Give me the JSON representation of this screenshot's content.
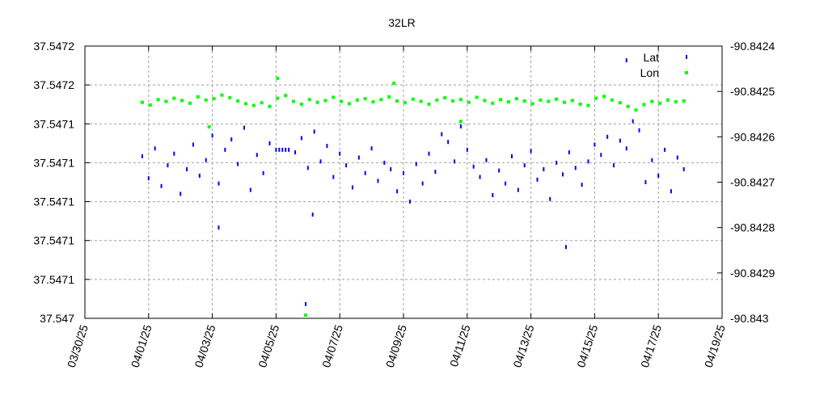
{
  "chart_data": {
    "type": "scatter",
    "title": "32LR",
    "xlabel": "",
    "ylabel": "",
    "x_units": "days since 03/30/25",
    "xlim": [
      0,
      20
    ],
    "x_tick_labels": [
      "03/30/25",
      "04/01/25",
      "04/03/25",
      "04/05/25",
      "04/07/25",
      "04/09/25",
      "04/11/25",
      "04/13/25",
      "04/15/25",
      "04/17/25",
      "04/19/25"
    ],
    "ylim_left": [
      37.547,
      37.54721
    ],
    "y_left_tick_labels": [
      "37.547",
      "37.5471",
      "37.5471",
      "37.5471",
      "37.5471",
      "37.5471",
      "37.5472",
      "37.5472"
    ],
    "ylim_right": [
      -90.843,
      -90.8424
    ],
    "y_right_tick_labels": [
      "-90.843",
      "-90.8429",
      "-90.8428",
      "-90.8427",
      "-90.8426",
      "-90.8425",
      "-90.8424"
    ],
    "grid": true,
    "legend_position": "top-right",
    "series": [
      {
        "name": "Lat",
        "axis": "left",
        "color": "#0000ff",
        "points": [
          [
            1.8,
            37.547125
          ],
          [
            2.0,
            37.547108
          ],
          [
            2.2,
            37.547131
          ],
          [
            2.4,
            37.547102
          ],
          [
            2.6,
            37.547118
          ],
          [
            2.8,
            37.547127
          ],
          [
            3.0,
            37.547096
          ],
          [
            3.2,
            37.547115
          ],
          [
            3.4,
            37.547134
          ],
          [
            3.6,
            37.54711
          ],
          [
            3.8,
            37.547122
          ],
          [
            4.0,
            37.547141
          ],
          [
            4.2,
            37.547104
          ],
          [
            4.4,
            37.54713
          ],
          [
            4.6,
            37.547138
          ],
          [
            4.8,
            37.547119
          ],
          [
            5.0,
            37.547147
          ],
          [
            5.2,
            37.547099
          ],
          [
            5.4,
            37.547126
          ],
          [
            5.6,
            37.547112
          ],
          [
            5.8,
            37.547135
          ],
          [
            6.0,
            37.54713
          ],
          [
            6.1,
            37.54713
          ],
          [
            6.2,
            37.54713
          ],
          [
            6.3,
            37.54713
          ],
          [
            6.4,
            37.54713
          ],
          [
            6.6,
            37.547128
          ],
          [
            6.8,
            37.547139
          ],
          [
            7.0,
            37.547116
          ],
          [
            7.2,
            37.547144
          ],
          [
            7.4,
            37.547121
          ],
          [
            7.6,
            37.547133
          ],
          [
            7.8,
            37.547109
          ],
          [
            8.0,
            37.547127
          ],
          [
            8.2,
            37.547118
          ],
          [
            8.4,
            37.547101
          ],
          [
            8.6,
            37.547124
          ],
          [
            8.8,
            37.547112
          ],
          [
            9.0,
            37.547131
          ],
          [
            9.2,
            37.547106
          ],
          [
            9.4,
            37.54712
          ],
          [
            9.6,
            37.547115
          ],
          [
            9.8,
            37.547098
          ],
          [
            10.0,
            37.547112
          ],
          [
            10.2,
            37.54709
          ],
          [
            10.4,
            37.547119
          ],
          [
            10.6,
            37.547104
          ],
          [
            10.8,
            37.547127
          ],
          [
            11.0,
            37.547113
          ],
          [
            11.2,
            37.547142
          ],
          [
            11.4,
            37.547136
          ],
          [
            11.6,
            37.547121
          ],
          [
            11.8,
            37.547148
          ],
          [
            12.0,
            37.54713
          ],
          [
            12.2,
            37.547117
          ],
          [
            12.4,
            37.547109
          ],
          [
            12.6,
            37.547122
          ],
          [
            12.8,
            37.547095
          ],
          [
            13.0,
            37.547114
          ],
          [
            13.2,
            37.547104
          ],
          [
            13.4,
            37.547125
          ],
          [
            13.6,
            37.547099
          ],
          [
            13.8,
            37.547118
          ],
          [
            14.0,
            37.547129
          ],
          [
            14.2,
            37.547107
          ],
          [
            14.4,
            37.547115
          ],
          [
            14.6,
            37.547092
          ],
          [
            14.8,
            37.54712
          ],
          [
            15.0,
            37.547111
          ],
          [
            15.2,
            37.547128
          ],
          [
            15.4,
            37.547116
          ],
          [
            15.6,
            37.547103
          ],
          [
            15.8,
            37.547121
          ],
          [
            16.0,
            37.547134
          ],
          [
            16.2,
            37.547126
          ],
          [
            16.4,
            37.54714
          ],
          [
            16.6,
            37.547118
          ],
          [
            16.8,
            37.547137
          ],
          [
            17.0,
            37.547131
          ],
          [
            17.2,
            37.547152
          ],
          [
            17.4,
            37.547145
          ],
          [
            17.6,
            37.547105
          ],
          [
            17.8,
            37.547122
          ],
          [
            18.0,
            37.54711
          ],
          [
            18.2,
            37.54713
          ],
          [
            18.4,
            37.547098
          ],
          [
            18.6,
            37.547124
          ],
          [
            18.8,
            37.547115
          ],
          [
            4.2,
            37.54707
          ],
          [
            6.93,
            37.547011
          ],
          [
            7.15,
            37.54708
          ],
          [
            15.1,
            37.547055
          ],
          [
            17.0,
            37.547199
          ]
        ]
      },
      {
        "name": "Lon",
        "axis": "right",
        "color": "#00ff00",
        "points": [
          [
            1.8,
            -90.842524
          ],
          [
            2.05,
            -90.84253
          ],
          [
            2.3,
            -90.842518
          ],
          [
            2.55,
            -90.842522
          ],
          [
            2.8,
            -90.842515
          ],
          [
            3.05,
            -90.84252
          ],
          [
            3.3,
            -90.842526
          ],
          [
            3.55,
            -90.842512
          ],
          [
            3.8,
            -90.842519
          ],
          [
            4.05,
            -90.842516
          ],
          [
            4.3,
            -90.842508
          ],
          [
            4.55,
            -90.842514
          ],
          [
            4.8,
            -90.842521
          ],
          [
            5.05,
            -90.842527
          ],
          [
            5.3,
            -90.842531
          ],
          [
            5.55,
            -90.842525
          ],
          [
            5.8,
            -90.842533
          ],
          [
            6.05,
            -90.842515
          ],
          [
            6.3,
            -90.842509
          ],
          [
            6.55,
            -90.842522
          ],
          [
            6.8,
            -90.842528
          ],
          [
            7.05,
            -90.842518
          ],
          [
            7.3,
            -90.842524
          ],
          [
            7.55,
            -90.84252
          ],
          [
            7.8,
            -90.842513
          ],
          [
            8.05,
            -90.842522
          ],
          [
            8.3,
            -90.842527
          ],
          [
            8.55,
            -90.842519
          ],
          [
            8.8,
            -90.842516
          ],
          [
            9.05,
            -90.842523
          ],
          [
            9.3,
            -90.842518
          ],
          [
            9.55,
            -90.842512
          ],
          [
            9.8,
            -90.842521
          ],
          [
            10.05,
            -90.842525
          ],
          [
            10.3,
            -90.842517
          ],
          [
            10.55,
            -90.842522
          ],
          [
            10.8,
            -90.842528
          ],
          [
            11.05,
            -90.842519
          ],
          [
            11.3,
            -90.842514
          ],
          [
            11.55,
            -90.842521
          ],
          [
            11.8,
            -90.842518
          ],
          [
            12.05,
            -90.842524
          ],
          [
            12.3,
            -90.842513
          ],
          [
            12.55,
            -90.84252
          ],
          [
            12.8,
            -90.842526
          ],
          [
            13.05,
            -90.842518
          ],
          [
            13.3,
            -90.842523
          ],
          [
            13.55,
            -90.842516
          ],
          [
            13.8,
            -90.842521
          ],
          [
            14.05,
            -90.842527
          ],
          [
            14.3,
            -90.842519
          ],
          [
            14.55,
            -90.842522
          ],
          [
            14.8,
            -90.842517
          ],
          [
            15.05,
            -90.842524
          ],
          [
            15.3,
            -90.84252
          ],
          [
            15.55,
            -90.842528
          ],
          [
            15.8,
            -90.842531
          ],
          [
            16.05,
            -90.842515
          ],
          [
            16.3,
            -90.842511
          ],
          [
            16.55,
            -90.842519
          ],
          [
            16.8,
            -90.842525
          ],
          [
            17.05,
            -90.842533
          ],
          [
            17.3,
            -90.842541
          ],
          [
            17.55,
            -90.842529
          ],
          [
            17.8,
            -90.842522
          ],
          [
            18.05,
            -90.842526
          ],
          [
            18.3,
            -90.842519
          ],
          [
            18.55,
            -90.842523
          ],
          [
            18.8,
            -90.842521
          ],
          [
            6.05,
            -90.842471
          ],
          [
            6.93,
            -90.842993
          ],
          [
            3.9,
            -90.842578
          ],
          [
            9.7,
            -90.842482
          ],
          [
            11.8,
            -90.842566
          ]
        ]
      }
    ]
  }
}
